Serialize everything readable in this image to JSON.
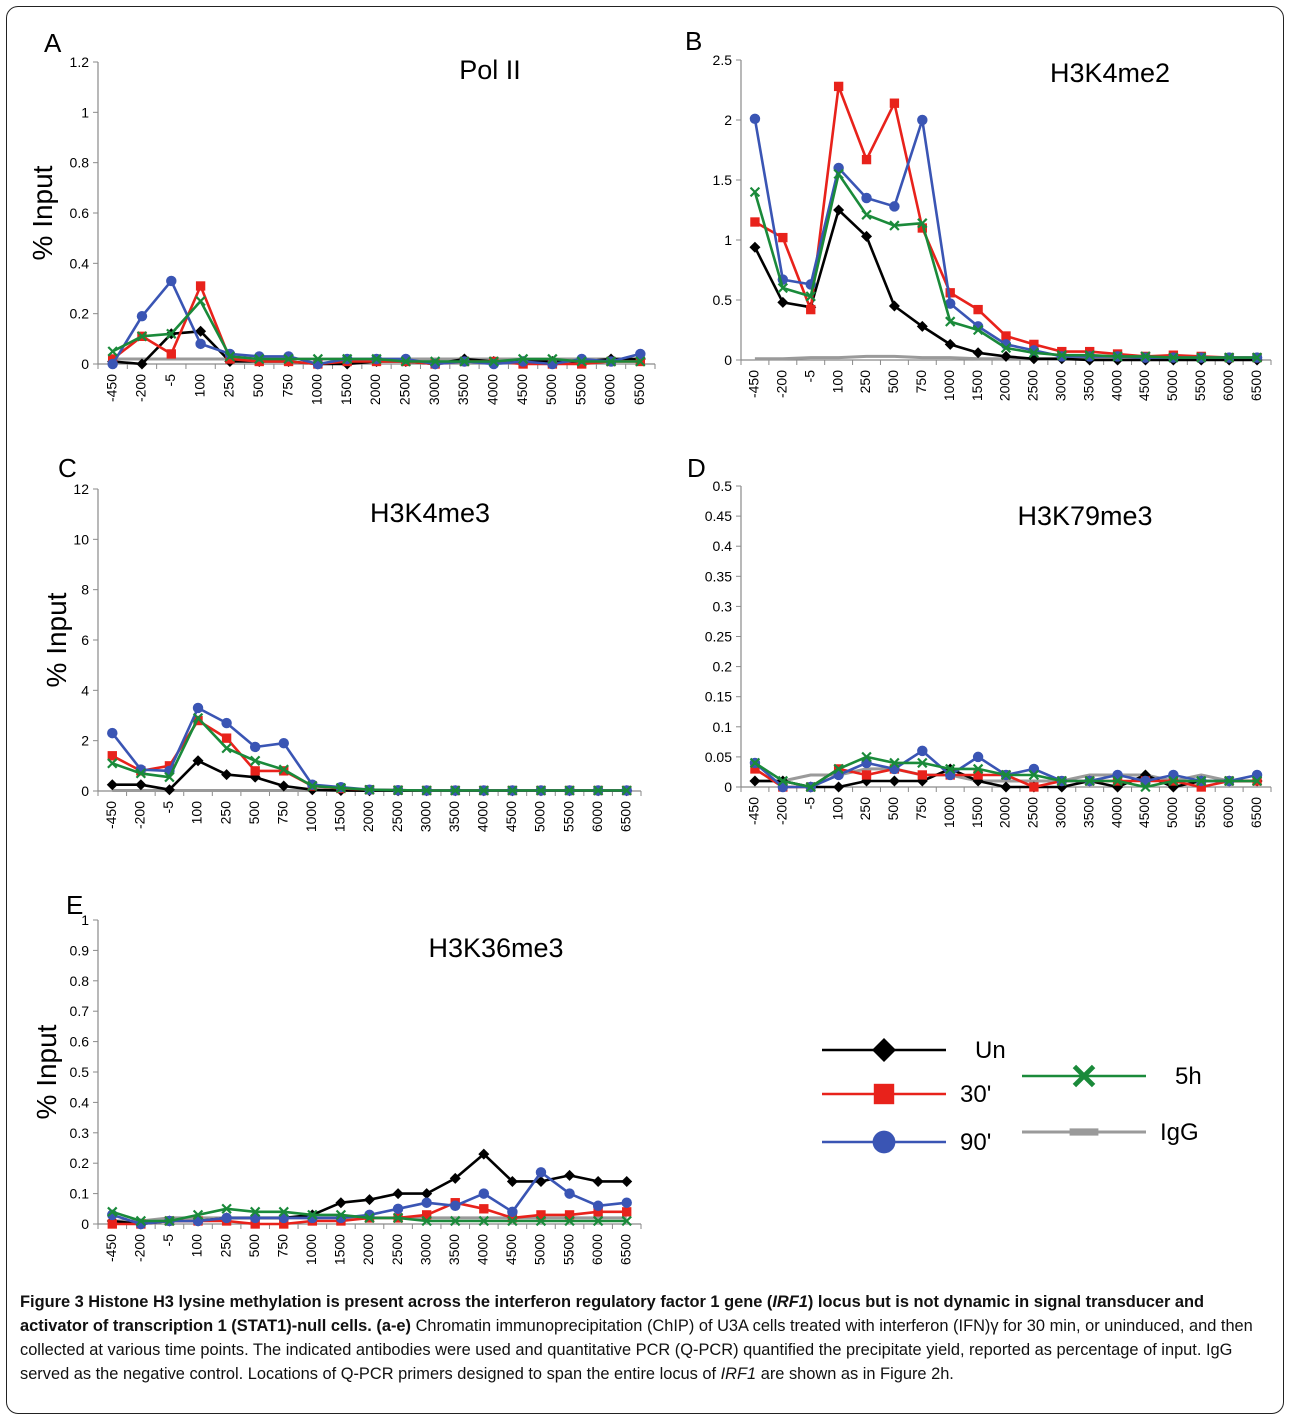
{
  "figure": {
    "caption_title_a": "Figure 3 Histone H3 lysine methylation is present across the interferon regulatory factor 1 gene (",
    "caption_title_gene": "IRF1",
    "caption_title_b": ") locus but is not dynamic in signal transducer and activator of transcription 1 (STAT1)-null cells",
    "caption_body_tag": ". (a-e)",
    "caption_body_a": " Chromatin immunoprecipitation (ChIP) of U3A cells treated with interferon (IFN)γ for 30 min, or uninduced, and then collected at various time points. The indicated antibodies were used and quantitative PCR (Q-PCR) quantified the precipitate yield, reported as percentage of input. IgG served as the negative control. Locations of Q-PCR primers designed to span the entire locus of ",
    "caption_body_gene": "IRF1",
    "caption_body_b": " are shown as in Figure 2h."
  },
  "legend": [
    {
      "name": "Un",
      "color": "#000000",
      "marker": "diamond"
    },
    {
      "name": "30'",
      "color": "#e8221b",
      "marker": "square"
    },
    {
      "name": "90'",
      "color": "#3a55b4",
      "marker": "circle"
    },
    {
      "name": "5h",
      "color": "#1a8a3a",
      "marker": "x"
    },
    {
      "name": "IgG",
      "color": "#9a9a9a",
      "marker": "dash"
    }
  ],
  "chart_data": [
    {
      "panel": "A",
      "title": "Pol II",
      "type": "line",
      "ylabel": "% Input",
      "ylim": [
        0,
        1.2
      ],
      "yticks": [
        "0",
        "0.2",
        "0.4",
        "0.6",
        "0.8",
        "1",
        "1.2"
      ],
      "categories": [
        "-450",
        "-200",
        "-5",
        "100",
        "250",
        "500",
        "750",
        "1000",
        "1500",
        "2000",
        "2500",
        "3000",
        "3500",
        "4000",
        "4500",
        "5000",
        "5500",
        "6000",
        "6500"
      ],
      "series": [
        {
          "name": "Un",
          "values": [
            0.01,
            0.0,
            0.12,
            0.13,
            0.01,
            0.01,
            0.01,
            0.0,
            0.0,
            0.01,
            0.01,
            0.0,
            0.02,
            0.01,
            0.01,
            0.01,
            0.01,
            0.02,
            0.02
          ]
        },
        {
          "name": "30'",
          "values": [
            0.02,
            0.11,
            0.04,
            0.31,
            0.02,
            0.01,
            0.01,
            0.0,
            0.01,
            0.01,
            0.01,
            0.0,
            0.01,
            0.01,
            0.0,
            0.0,
            0.0,
            0.01,
            0.01
          ]
        },
        {
          "name": "90'",
          "values": [
            0.0,
            0.19,
            0.33,
            0.08,
            0.04,
            0.03,
            0.03,
            0.0,
            0.02,
            0.02,
            0.02,
            0.0,
            0.01,
            0.0,
            0.01,
            0.0,
            0.02,
            0.01,
            0.04
          ]
        },
        {
          "name": "5h",
          "values": [
            0.05,
            0.11,
            0.12,
            0.25,
            0.03,
            0.02,
            0.02,
            0.02,
            0.02,
            0.02,
            0.01,
            0.01,
            0.01,
            0.01,
            0.02,
            0.02,
            0.01,
            0.01,
            0.01
          ]
        },
        {
          "name": "IgG",
          "values": [
            0.02,
            0.02,
            0.02,
            0.02,
            0.02,
            0.02,
            0.02,
            0.02,
            0.02,
            0.02,
            0.02,
            0.02,
            0.02,
            0.02,
            0.02,
            0.02,
            0.02,
            0.02,
            0.02
          ]
        }
      ]
    },
    {
      "panel": "B",
      "title": "H3K4me2",
      "type": "line",
      "ylabel": "",
      "ylim": [
        0,
        2.5
      ],
      "yticks": [
        "0",
        "0.5",
        "1",
        "1.5",
        "2",
        "2.5"
      ],
      "categories": [
        "-450",
        "-200",
        "-5",
        "100",
        "250",
        "500",
        "750",
        "1000",
        "1500",
        "2000",
        "2500",
        "3000",
        "3500",
        "4000",
        "4500",
        "5000",
        "5500",
        "6000",
        "6500"
      ],
      "series": [
        {
          "name": "Un",
          "values": [
            0.94,
            0.48,
            0.44,
            1.25,
            1.03,
            0.45,
            0.28,
            0.13,
            0.06,
            0.03,
            0.01,
            0.01,
            0.0,
            0.0,
            0.0,
            0.0,
            0.0,
            0.0,
            0.0
          ]
        },
        {
          "name": "30'",
          "values": [
            1.15,
            1.02,
            0.42,
            2.28,
            1.67,
            2.14,
            1.1,
            0.56,
            0.42,
            0.2,
            0.13,
            0.07,
            0.07,
            0.05,
            0.03,
            0.04,
            0.03,
            0.02,
            0.02
          ]
        },
        {
          "name": "90'",
          "values": [
            2.01,
            0.67,
            0.63,
            1.6,
            1.35,
            1.28,
            2.0,
            0.47,
            0.28,
            0.13,
            0.08,
            0.03,
            0.03,
            0.03,
            0.02,
            0.02,
            0.02,
            0.02,
            0.02
          ]
        },
        {
          "name": "5h",
          "values": [
            1.4,
            0.6,
            0.53,
            1.55,
            1.21,
            1.12,
            1.14,
            0.32,
            0.25,
            0.1,
            0.06,
            0.04,
            0.04,
            0.03,
            0.03,
            0.02,
            0.02,
            0.02,
            0.02
          ]
        },
        {
          "name": "IgG",
          "values": [
            0.01,
            0.01,
            0.02,
            0.02,
            0.03,
            0.03,
            0.02,
            0.02,
            0.01,
            0.01,
            0.01,
            0.01,
            0.01,
            0.01,
            0.01,
            0.01,
            0.01,
            0.01,
            0.01
          ]
        }
      ]
    },
    {
      "panel": "C",
      "title": "H3K4me3",
      "type": "line",
      "ylabel": "% Input",
      "ylim": [
        0,
        12
      ],
      "yticks": [
        "0",
        "2",
        "4",
        "6",
        "8",
        "10",
        "12"
      ],
      "categories": [
        "-450",
        "-200",
        "-5",
        "100",
        "250",
        "500",
        "750",
        "1000",
        "1500",
        "2000",
        "2500",
        "3000",
        "3500",
        "4000",
        "4500",
        "5000",
        "5500",
        "6000",
        "6500"
      ],
      "series": [
        {
          "name": "Un",
          "values": [
            0.25,
            0.25,
            0.05,
            1.2,
            0.65,
            0.55,
            0.2,
            0.05,
            0.02,
            0.01,
            0.01,
            0.01,
            0.01,
            0.01,
            0.01,
            0.01,
            0.01,
            0.01,
            0.01
          ]
        },
        {
          "name": "30'",
          "values": [
            1.4,
            0.8,
            1.0,
            2.8,
            2.1,
            0.8,
            0.8,
            0.2,
            0.1,
            0.05,
            0.03,
            0.02,
            0.02,
            0.02,
            0.02,
            0.02,
            0.02,
            0.02,
            0.02
          ]
        },
        {
          "name": "90'",
          "values": [
            2.3,
            0.85,
            0.8,
            3.3,
            2.7,
            1.75,
            1.9,
            0.25,
            0.15,
            0.05,
            0.03,
            0.02,
            0.02,
            0.02,
            0.02,
            0.02,
            0.02,
            0.02,
            0.02
          ]
        },
        {
          "name": "5h",
          "values": [
            1.1,
            0.7,
            0.55,
            2.9,
            1.7,
            1.2,
            0.85,
            0.2,
            0.12,
            0.05,
            0.03,
            0.02,
            0.02,
            0.02,
            0.02,
            0.02,
            0.02,
            0.02,
            0.02
          ]
        },
        {
          "name": "IgG",
          "values": [
            0.02,
            0.02,
            0.02,
            0.02,
            0.02,
            0.02,
            0.02,
            0.02,
            0.02,
            0.02,
            0.02,
            0.02,
            0.02,
            0.02,
            0.02,
            0.02,
            0.02,
            0.02,
            0.02
          ]
        }
      ]
    },
    {
      "panel": "D",
      "title": "H3K79me3",
      "type": "line",
      "ylabel": "",
      "ylim": [
        0,
        0.5
      ],
      "yticks": [
        "0",
        "0.05",
        "0.1",
        "0.15",
        "0.2",
        "0.25",
        "0.3",
        "0.35",
        "0.4",
        "0.45",
        "0.5"
      ],
      "categories": [
        "-450",
        "-200",
        "-5",
        "100",
        "250",
        "500",
        "750",
        "1000",
        "1500",
        "2000",
        "2500",
        "3000",
        "3500",
        "4000",
        "4500",
        "5000",
        "5500",
        "6000",
        "6500"
      ],
      "series": [
        {
          "name": "Un",
          "values": [
            0.01,
            0.01,
            0.0,
            0.0,
            0.01,
            0.01,
            0.01,
            0.03,
            0.01,
            0.0,
            0.0,
            0.0,
            0.01,
            0.0,
            0.02,
            0.0,
            0.01,
            0.01,
            0.01
          ]
        },
        {
          "name": "30'",
          "values": [
            0.03,
            0.0,
            0.0,
            0.03,
            0.02,
            0.03,
            0.02,
            0.02,
            0.02,
            0.02,
            0.0,
            0.01,
            0.01,
            0.01,
            0.01,
            0.01,
            0.0,
            0.01,
            0.01
          ]
        },
        {
          "name": "90'",
          "values": [
            0.04,
            0.0,
            0.0,
            0.02,
            0.04,
            0.03,
            0.06,
            0.02,
            0.05,
            0.02,
            0.03,
            0.01,
            0.01,
            0.02,
            0.01,
            0.02,
            0.01,
            0.01,
            0.02
          ]
        },
        {
          "name": "5h",
          "values": [
            0.04,
            0.01,
            0.0,
            0.03,
            0.05,
            0.04,
            0.04,
            0.03,
            0.03,
            0.02,
            0.02,
            0.01,
            0.01,
            0.01,
            0.0,
            0.01,
            0.01,
            0.01,
            0.01
          ]
        },
        {
          "name": "IgG",
          "values": [
            0.01,
            0.01,
            0.02,
            0.02,
            0.03,
            0.03,
            0.02,
            0.02,
            0.01,
            0.01,
            0.01,
            0.01,
            0.02,
            0.02,
            0.02,
            0.01,
            0.02,
            0.01,
            0.01
          ]
        }
      ]
    },
    {
      "panel": "E",
      "title": "H3K36me3",
      "type": "line",
      "ylabel": "% Input",
      "ylim": [
        0,
        1
      ],
      "yticks": [
        "0",
        "0.1",
        "0.2",
        "0.3",
        "0.4",
        "0.5",
        "0.6",
        "0.7",
        "0.8",
        "0.9",
        "1"
      ],
      "categories": [
        "-450",
        "-200",
        "-5",
        "100",
        "250",
        "500",
        "750",
        "1000",
        "1500",
        "2000",
        "2500",
        "3000",
        "3500",
        "4000",
        "4500",
        "5000",
        "5500",
        "6000",
        "6500"
      ],
      "series": [
        {
          "name": "Un",
          "values": [
            0.01,
            0.0,
            0.01,
            0.01,
            0.02,
            0.02,
            0.02,
            0.03,
            0.07,
            0.08,
            0.1,
            0.1,
            0.15,
            0.23,
            0.14,
            0.14,
            0.16,
            0.14,
            0.14
          ]
        },
        {
          "name": "30'",
          "values": [
            0.0,
            0.0,
            0.01,
            0.01,
            0.01,
            0.0,
            0.0,
            0.01,
            0.01,
            0.02,
            0.02,
            0.03,
            0.07,
            0.05,
            0.02,
            0.03,
            0.03,
            0.04,
            0.04
          ]
        },
        {
          "name": "90'",
          "values": [
            0.03,
            0.0,
            0.01,
            0.01,
            0.02,
            0.02,
            0.02,
            0.02,
            0.02,
            0.03,
            0.05,
            0.07,
            0.06,
            0.1,
            0.04,
            0.17,
            0.1,
            0.06,
            0.07
          ]
        },
        {
          "name": "5h",
          "values": [
            0.04,
            0.01,
            0.01,
            0.03,
            0.05,
            0.04,
            0.04,
            0.03,
            0.03,
            0.02,
            0.02,
            0.01,
            0.01,
            0.01,
            0.01,
            0.01,
            0.01,
            0.01,
            0.01
          ]
        },
        {
          "name": "IgG",
          "values": [
            0.01,
            0.01,
            0.02,
            0.02,
            0.02,
            0.02,
            0.02,
            0.02,
            0.02,
            0.02,
            0.02,
            0.02,
            0.02,
            0.02,
            0.02,
            0.02,
            0.02,
            0.02,
            0.02
          ]
        }
      ]
    }
  ]
}
